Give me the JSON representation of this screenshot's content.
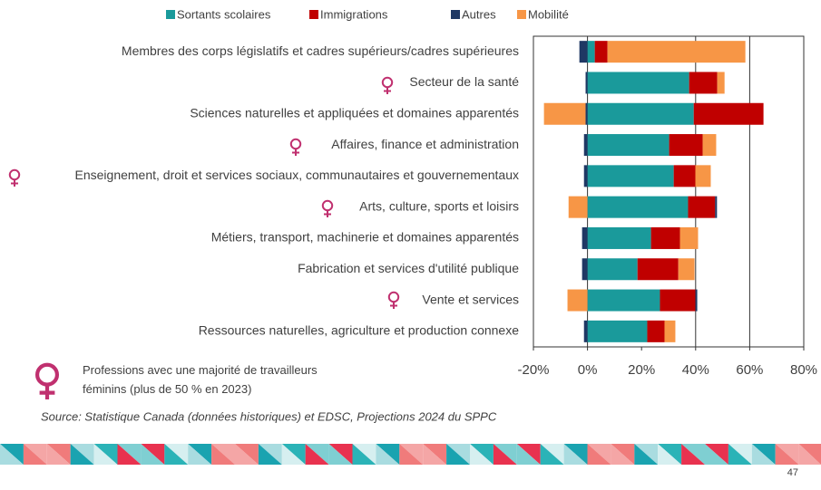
{
  "chart_data": {
    "type": "bar",
    "orientation": "horizontal",
    "stacked": true,
    "categories": [
      "Membres des corps législatifs et cadres supérieurs/cadres supérieures",
      "Secteur de la santé",
      "Sciences naturelles et appliquées et domaines apparentés",
      "Affaires, finance et administration",
      "Enseignement, droit et services sociaux, communautaires et gouvernementaux",
      "Arts, culture, sports et loisirs",
      "Métiers, transport, machinerie et domaines apparentés",
      "Fabrication et services d'utilité publique",
      "Vente et services",
      "Ressources naturelles, agriculture et production connexe"
    ],
    "series": [
      {
        "name": "Sortants scolaires",
        "color": "#1a9a9b",
        "values": [
          2.7,
          37.6,
          39.3,
          30.2,
          31.9,
          37.2,
          23.5,
          18.5,
          26.8,
          22.1
        ]
      },
      {
        "name": "Immigrations",
        "color": "#c00000",
        "values": [
          4.7,
          10.4,
          25.8,
          12.4,
          8,
          10,
          10.7,
          15.1,
          13.1,
          6.4
        ]
      },
      {
        "name": "Autres",
        "color": "#1f3864",
        "values": [
          -3,
          -0.7,
          -0.7,
          -1.3,
          -1.3,
          0.7,
          -2,
          -2,
          0.7,
          -1.3
        ]
      },
      {
        "name": "Mobilité",
        "color": "#f79646",
        "values": [
          51,
          2.7,
          -15.4,
          5,
          5.7,
          -7,
          6.7,
          6,
          -7.4,
          4
        ]
      }
    ],
    "xlim": [
      -20,
      80
    ],
    "xticks": [
      {
        "value": -20,
        "label": "-20%"
      },
      {
        "value": 0,
        "label": "0%"
      },
      {
        "value": 20,
        "label": "20%"
      },
      {
        "value": 40,
        "label": "40%"
      },
      {
        "value": 60,
        "label": "60%"
      },
      {
        "value": 80,
        "label": "80%"
      }
    ],
    "grid_lines": [
      0,
      40,
      60
    ]
  },
  "note": "Professions avec une majorité de travailleurs féminins (plus de 50 % en 2023)",
  "source": "Source: Statistique Canada (données historiques) et EDSC, Projections 2024 du SPPC",
  "page_number": "47"
}
